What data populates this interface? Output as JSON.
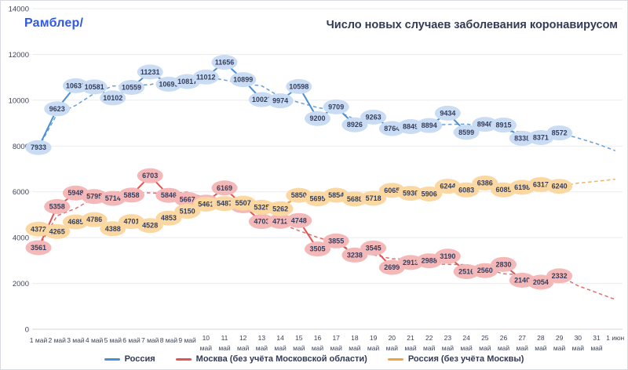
{
  "header": {
    "logo": "Рамблер/",
    "logo_color": "#2f58e6",
    "title": "Число новых случаев заболевания коронавирусом",
    "title_color": "#333a56"
  },
  "chart_data": {
    "type": "line",
    "title": "Число новых случаев заболевания коронавирусом",
    "xlabel": "",
    "ylabel": "",
    "ylim": [
      0,
      14000
    ],
    "y_ticks": [
      0,
      2000,
      4000,
      6000,
      8000,
      10000,
      12000,
      14000
    ],
    "grid": true,
    "legend_position": "bottom",
    "x_labels": [
      "1 май",
      "2 май",
      "3 май",
      "4 май",
      "5 май",
      "6 май",
      "7 май",
      "8 май",
      "9 май",
      "10 май",
      "11 май",
      "12 май",
      "13 май",
      "14 май",
      "15 май",
      "16 май",
      "17 май",
      "18 май",
      "19 май",
      "20 май",
      "21 май",
      "22 май",
      "23 май",
      "24 май",
      "25 май",
      "26 май",
      "27 май",
      "28 май",
      "29 май",
      "30 май",
      "31 май",
      "1 июн"
    ],
    "series": [
      {
        "name": "Россия",
        "color": "#4a8fd6",
        "bubble_fill": "#c9dcf4",
        "values": [
          7933,
          9623,
          10633,
          10581,
          10102,
          10559,
          11231,
          10699,
          10817,
          11012,
          11656,
          10899,
          10028,
          9974,
          10598,
          9200,
          9709,
          8926,
          9263,
          8764,
          8849,
          8894,
          9434,
          8599,
          8946,
          8915,
          8338,
          8371,
          8572
        ],
        "trend_tail": [
          8350,
          8100,
          7800
        ]
      },
      {
        "name": "Москва (без учёта Московской области)",
        "color": "#e25453",
        "bubble_fill": "#f5b8b8",
        "values": [
          3561,
          5358,
          5948,
          5795,
          5714,
          5858,
          6703,
          5846,
          5667,
          5551,
          6169,
          5392,
          4703,
          4712,
          4748,
          3505,
          3855,
          3238,
          3545,
          2699,
          2913,
          2988,
          3190,
          2516,
          2560,
          2830,
          2140,
          2054,
          2332
        ],
        "trend_tail": [
          1900,
          1600,
          1300
        ]
      },
      {
        "name": "Россия (без учёта Москвы)",
        "color": "#f2a33c",
        "bubble_fill": "#fbd8a2",
        "values": [
          4372,
          4265,
          4685,
          4786,
          4388,
          4701,
          4528,
          4853,
          5150,
          5461,
          5487,
          5507,
          5325,
          5262,
          5850,
          5695,
          5854,
          5688,
          5718,
          6065,
          5936,
          5906,
          6244,
          6083,
          6386,
          6085,
          6198,
          6317,
          6240
        ],
        "trend_tail": [
          6380,
          6460,
          6550
        ]
      }
    ],
    "label_text_color": "#343d5c",
    "axis_text_color": "#3c4358",
    "grid_color": "#ebebf0",
    "axis_line_color": "#d5d5dc"
  }
}
